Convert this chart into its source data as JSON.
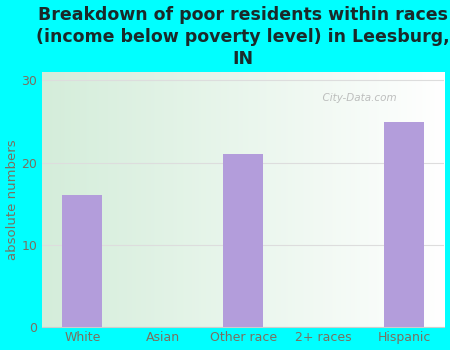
{
  "categories": [
    "White",
    "Asian",
    "Other race",
    "2+ races",
    "Hispanic"
  ],
  "values": [
    16,
    0,
    21,
    0,
    25
  ],
  "bar_color": "#b39ddb",
  "title": "Breakdown of poor residents within races\n(income below poverty level) in Leesburg,\nIN",
  "ylabel": "absolute numbers",
  "ylim": [
    0,
    31
  ],
  "yticks": [
    0,
    10,
    20,
    30
  ],
  "bg_color": "#00ffff",
  "title_color": "#1a2a2a",
  "tick_color": "#7a7060",
  "title_fontsize": 12.5,
  "label_fontsize": 9.5,
  "tick_fontsize": 9,
  "watermark": "  City-Data.com"
}
